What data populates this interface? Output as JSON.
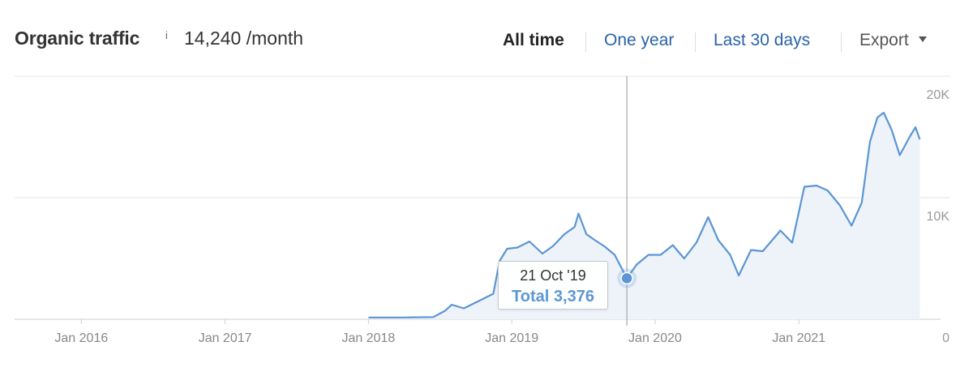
{
  "header": {
    "title": "Organic traffic",
    "info_marker": "i",
    "metric_value": "14,240 /month"
  },
  "range_tabs": [
    {
      "label": "All time",
      "active": true
    },
    {
      "label": "One year",
      "active": false
    },
    {
      "label": "Last 30 days",
      "active": false
    }
  ],
  "export": {
    "label": "Export"
  },
  "icons": {
    "info": "info-icon",
    "export_caret": "caret-down-icon"
  },
  "colors": {
    "line": "#5b95d4",
    "area": "#edf3f9",
    "link": "#2a63a8",
    "grid": "#e4e4e4",
    "tooltip_value": "#5d97d3"
  },
  "tooltip": {
    "date": "21 Oct '19",
    "value_text": "Total 3,376",
    "x": "2019-10-21",
    "y": 3376
  },
  "chart_data": {
    "type": "area",
    "title": "",
    "xlabel": "",
    "ylabel": "",
    "ylim": [
      0,
      20000
    ],
    "xlim": [
      "2015-07-15",
      "2021-09-30"
    ],
    "y_ticks": [
      {
        "value": 20000,
        "label": "20K"
      },
      {
        "value": 10000,
        "label": "10K"
      },
      {
        "value": 0,
        "label": "0"
      }
    ],
    "x_ticks": [
      {
        "value": "2016-01-01",
        "label": "Jan 2016"
      },
      {
        "value": "2017-01-01",
        "label": "Jan 2017"
      },
      {
        "value": "2018-01-01",
        "label": "Jan 2018"
      },
      {
        "value": "2019-01-01",
        "label": "Jan 2019"
      },
      {
        "value": "2020-01-01",
        "label": "Jan 2020"
      },
      {
        "value": "2021-01-01",
        "label": "Jan 2021"
      }
    ],
    "grid": true,
    "series": [
      {
        "points": [
          [
            "2018-01-01",
            150
          ],
          [
            "2018-04-01",
            150
          ],
          [
            "2018-06-15",
            180
          ],
          [
            "2018-07-15",
            700
          ],
          [
            "2018-08-01",
            1200
          ],
          [
            "2018-09-01",
            900
          ],
          [
            "2018-10-15",
            1600
          ],
          [
            "2018-11-15",
            2100
          ],
          [
            "2018-12-01",
            4800
          ],
          [
            "2018-12-20",
            5800
          ],
          [
            "2019-01-15",
            5900
          ],
          [
            "2019-02-15",
            6400
          ],
          [
            "2019-03-20",
            5400
          ],
          [
            "2019-04-15",
            6000
          ],
          [
            "2019-05-15",
            7000
          ],
          [
            "2019-06-10",
            7600
          ],
          [
            "2019-06-20",
            8700
          ],
          [
            "2019-07-10",
            7000
          ],
          [
            "2019-08-01",
            6500
          ],
          [
            "2019-08-25",
            6000
          ],
          [
            "2019-09-20",
            5300
          ],
          [
            "2019-10-21",
            3376
          ],
          [
            "2019-11-15",
            4500
          ],
          [
            "2019-12-15",
            5300
          ],
          [
            "2020-01-15",
            5300
          ],
          [
            "2020-02-15",
            6100
          ],
          [
            "2020-03-15",
            5000
          ],
          [
            "2020-04-15",
            6300
          ],
          [
            "2020-05-15",
            8400
          ],
          [
            "2020-06-10",
            6500
          ],
          [
            "2020-07-10",
            5300
          ],
          [
            "2020-08-01",
            3600
          ],
          [
            "2020-09-01",
            5700
          ],
          [
            "2020-10-01",
            5600
          ],
          [
            "2020-11-15",
            7300
          ],
          [
            "2020-12-15",
            6300
          ],
          [
            "2021-01-15",
            10900
          ],
          [
            "2021-02-15",
            11000
          ],
          [
            "2021-03-15",
            10600
          ],
          [
            "2021-04-15",
            9400
          ],
          [
            "2021-05-15",
            7700
          ],
          [
            "2021-06-10",
            9600
          ],
          [
            "2021-07-01",
            14600
          ],
          [
            "2021-07-20",
            16600
          ],
          [
            "2021-08-05",
            17000
          ],
          [
            "2021-08-25",
            15600
          ],
          [
            "2021-09-15",
            13500
          ],
          [
            "2021-10-10",
            15000
          ],
          [
            "2021-10-25",
            15800
          ],
          [
            "2021-11-05",
            14800
          ]
        ]
      }
    ]
  }
}
